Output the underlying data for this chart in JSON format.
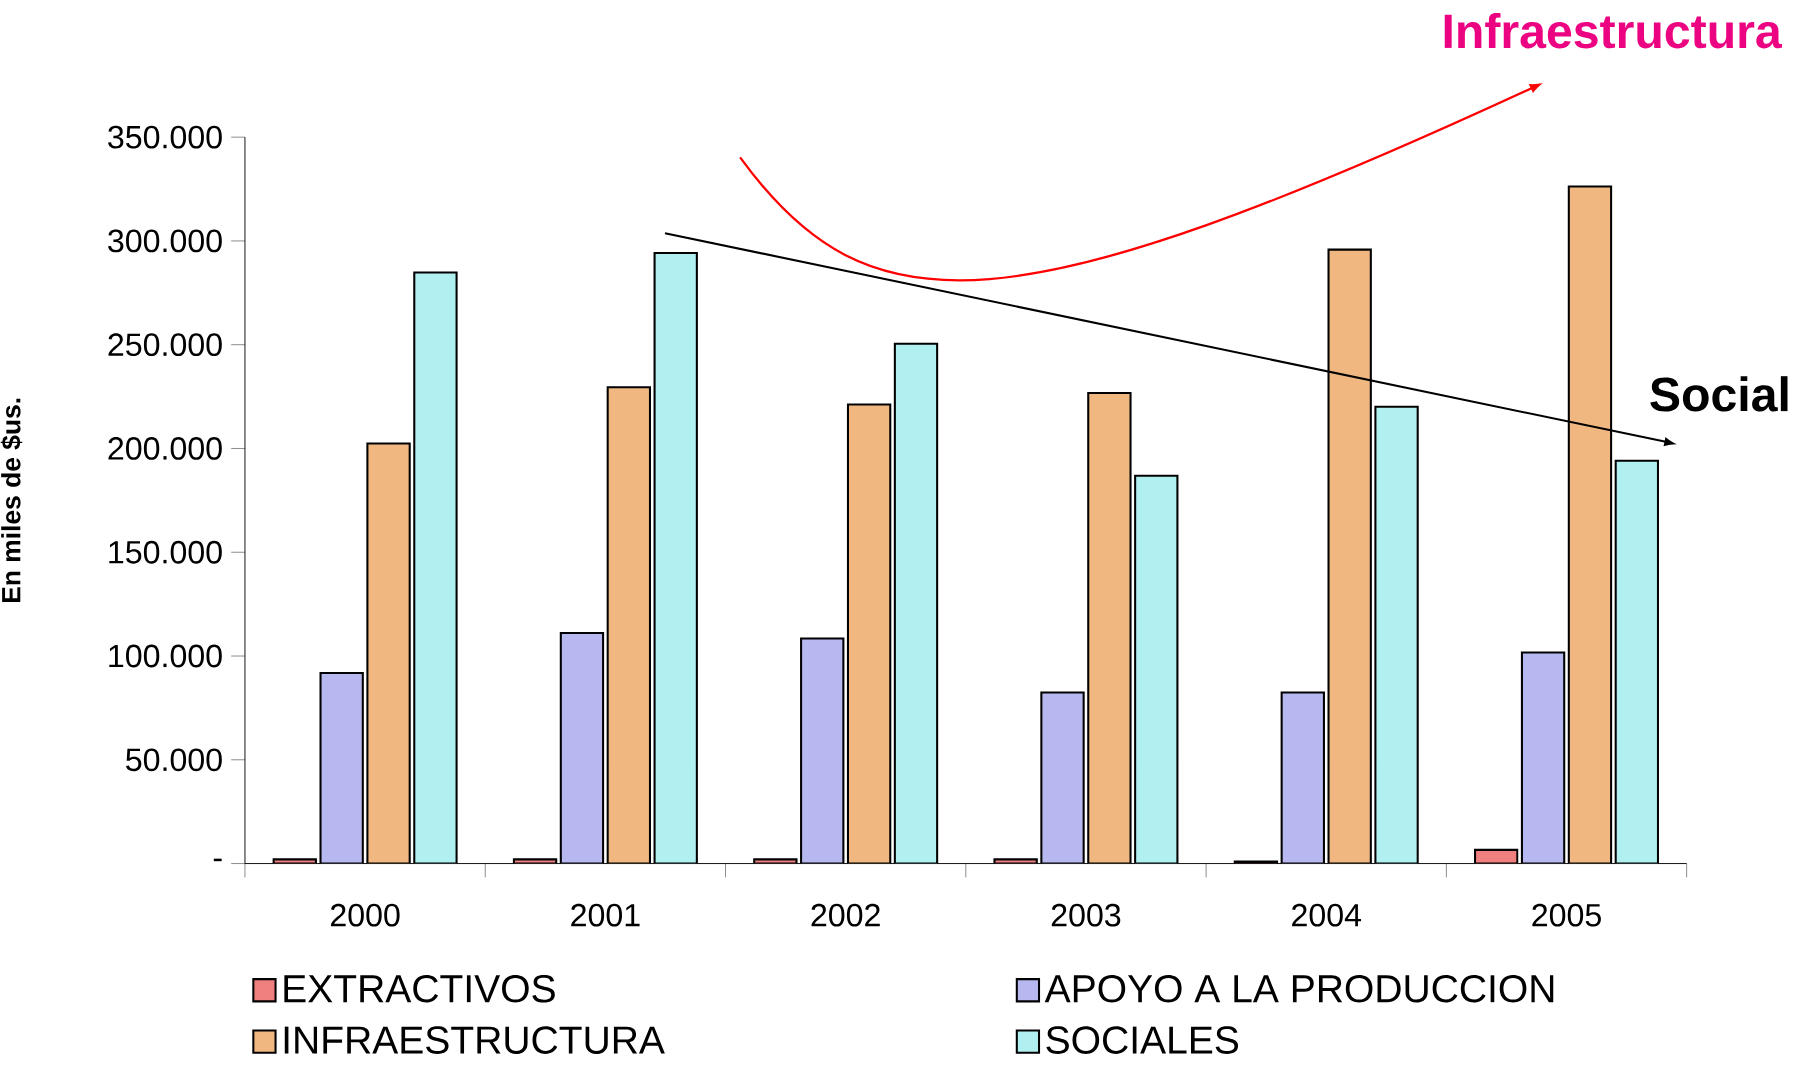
{
  "chart_data": {
    "type": "bar",
    "ylabel": "En miles de $us.",
    "categories": [
      "2000",
      "2001",
      "2002",
      "2003",
      "2004",
      "2005"
    ],
    "series": [
      {
        "name": "EXTRACTIVOS",
        "color": "#f08080",
        "values": [
          2000,
          2000,
          2000,
          2000,
          1000,
          6600
        ]
      },
      {
        "name": "APOYO A LA PRODUCCION",
        "color": "#b8b8f0",
        "values": [
          91800,
          111100,
          108400,
          82400,
          82400,
          101700
        ]
      },
      {
        "name": "INFRAESTRUCTURA",
        "color": "#f0b880",
        "values": [
          202400,
          229500,
          221200,
          226700,
          295800,
          326200
        ]
      },
      {
        "name": "SOCIALES",
        "color": "#b0f0f0",
        "values": [
          284800,
          294200,
          250500,
          186900,
          220100,
          194100
        ]
      }
    ],
    "ylim": [
      0,
      350000
    ],
    "yticks": [
      {
        "value": 0,
        "label": "-"
      },
      {
        "value": 50000,
        "label": "50.000"
      },
      {
        "value": 100000,
        "label": "100.000"
      },
      {
        "value": 150000,
        "label": "150.000"
      },
      {
        "value": 200000,
        "label": "200.000"
      },
      {
        "value": 250000,
        "label": "250.000"
      },
      {
        "value": 300000,
        "label": "300.000"
      },
      {
        "value": 350000,
        "label": "350.000"
      }
    ],
    "annotations": [
      "Infraestructura",
      "Social"
    ],
    "legend": "bottom",
    "grid": false
  }
}
